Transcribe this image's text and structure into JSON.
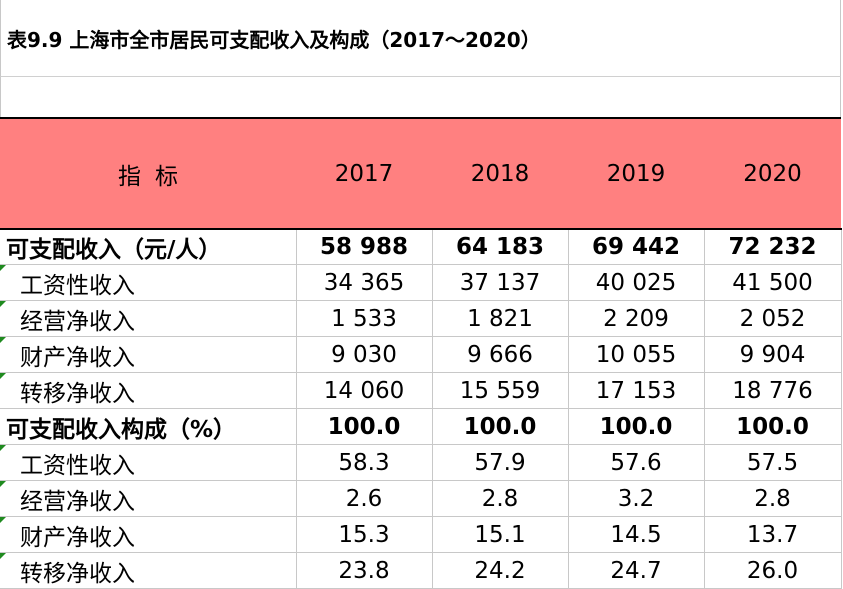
{
  "title": "表9.9 上海市全市居民可支配收入及构成（2017～2020）",
  "header": {
    "indicator": "指标",
    "years": [
      "2017",
      "2018",
      "2019",
      "2020"
    ]
  },
  "rows": [
    {
      "label": "可支配收入（元/人）",
      "values": [
        "58 988",
        "64 183",
        "69 442",
        "72 232"
      ]
    },
    {
      "label": "工资性收入",
      "values": [
        "34 365",
        "37 137",
        "40 025",
        "41 500"
      ]
    },
    {
      "label": "经营净收入",
      "values": [
        "1 533",
        "1 821",
        "2 209",
        "2 052"
      ]
    },
    {
      "label": "财产净收入",
      "values": [
        "9 030",
        "9 666",
        "10 055",
        "9 904"
      ]
    },
    {
      "label": "转移净收入",
      "values": [
        "14 060",
        "15 559",
        "17 153",
        "18 776"
      ]
    },
    {
      "label": "可支配收入构成（%）",
      "values": [
        "100.0",
        "100.0",
        "100.0",
        "100.0"
      ]
    },
    {
      "label": "工资性收入",
      "values": [
        "58.3",
        "57.9",
        "57.6",
        "57.5"
      ]
    },
    {
      "label": "经营净收入",
      "values": [
        "2.6",
        "2.8",
        "3.2",
        "2.8"
      ]
    },
    {
      "label": "财产净收入",
      "values": [
        "15.3",
        "15.1",
        "14.5",
        "13.7"
      ]
    },
    {
      "label": "转移净收入",
      "values": [
        "23.8",
        "24.2",
        "24.7",
        "26.0"
      ]
    }
  ],
  "colors": {
    "header_bg": "#ff8080",
    "error_marker": "#1f8a1f"
  }
}
